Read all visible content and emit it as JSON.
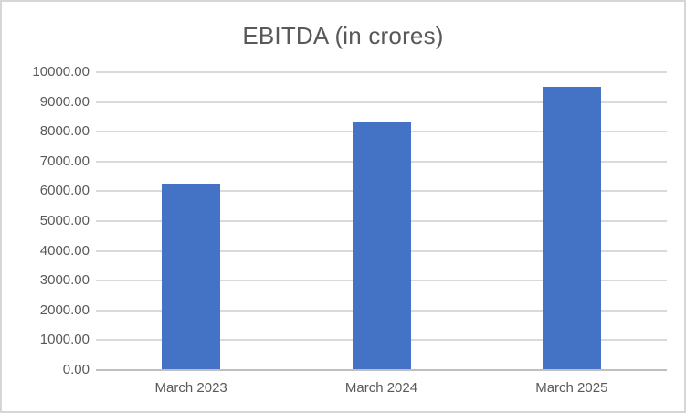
{
  "chart": {
    "colors": {
      "bar": "#4472C4",
      "gridline": "#D9D9D9",
      "axis_line": "#BFBFBF",
      "text": "#595959",
      "background": "#FFFFFF",
      "frame_border": "#D6D6D6"
    }
  },
  "chart_data": {
    "type": "bar",
    "title": "EBITDA (in crores)",
    "categories": [
      "March 2023",
      "March 2024",
      "March 2025"
    ],
    "values": [
      6250,
      8300,
      9500
    ],
    "xlabel": "",
    "ylabel": "",
    "ylim": [
      0,
      10000
    ],
    "ytick_step": 1000,
    "ytick_decimals": 2,
    "grid": true,
    "legend": false
  }
}
